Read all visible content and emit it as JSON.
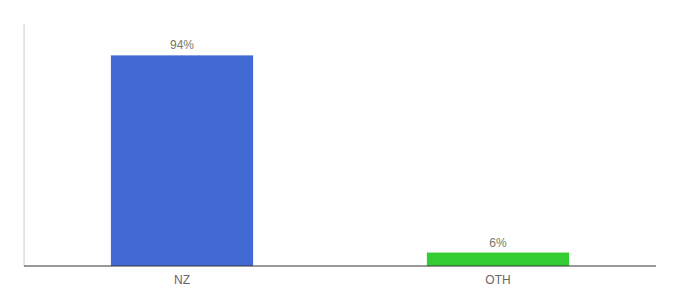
{
  "chart_data": {
    "type": "bar",
    "categories": [
      "NZ",
      "OTH"
    ],
    "values": [
      94,
      6
    ],
    "value_labels": [
      "94%",
      "6%"
    ],
    "data_labels": true,
    "colors": [
      "#4169d4",
      "#33cc33"
    ],
    "ylim": [
      0,
      108
    ],
    "tick_labels": "x"
  }
}
